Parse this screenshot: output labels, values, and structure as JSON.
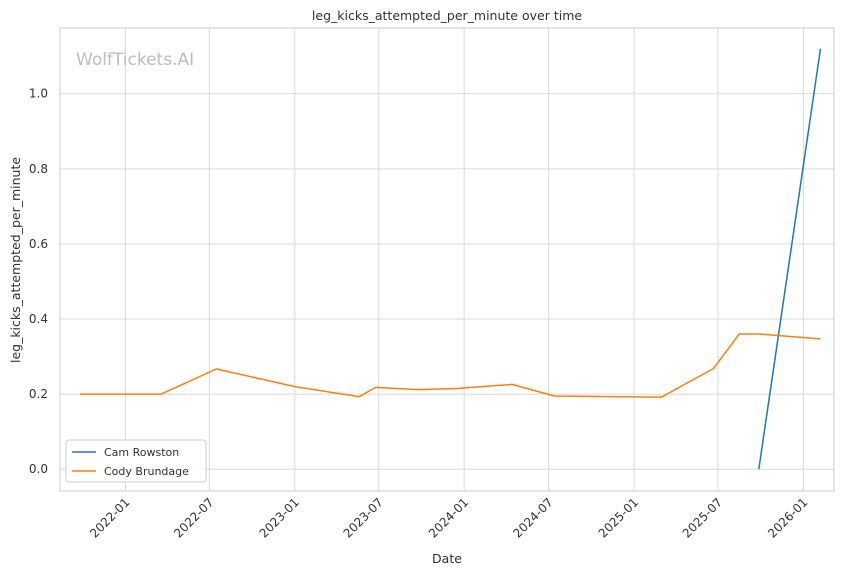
{
  "chart_data": {
    "type": "line",
    "title": "leg_kicks_attempted_per_minute over time",
    "xlabel": "Date",
    "ylabel": "leg_kicks_attempted_per_minute",
    "watermark": "WolfTickets.AI",
    "x_ticks": [
      "2022-01",
      "2022-07",
      "2023-01",
      "2023-07",
      "2024-01",
      "2024-07",
      "2025-01",
      "2025-07",
      "2026-01"
    ],
    "y_ticks": [
      "0.0",
      "0.2",
      "0.4",
      "0.6",
      "0.8",
      "1.0"
    ],
    "xlim": [
      "2021-08-13",
      "2026-03-08"
    ],
    "ylim": [
      -0.058,
      1.175
    ],
    "grid": true,
    "legend_position": "lower-left",
    "series": [
      {
        "name": "Cam Rowston",
        "color": "#1f77b4",
        "points": [
          {
            "x": "2025-09-27",
            "y": 0.0
          },
          {
            "x": "2026-02-07",
            "y": 1.12
          }
        ]
      },
      {
        "name": "Cody Brundage",
        "color": "#ff7f0e",
        "points": [
          {
            "x": "2021-09-25",
            "y": 0.2
          },
          {
            "x": "2022-03-19",
            "y": 0.2
          },
          {
            "x": "2022-07-16",
            "y": 0.267
          },
          {
            "x": "2023-01-01",
            "y": 0.22
          },
          {
            "x": "2023-05-20",
            "y": 0.193
          },
          {
            "x": "2023-06-24",
            "y": 0.218
          },
          {
            "x": "2023-09-23",
            "y": 0.212
          },
          {
            "x": "2023-12-16",
            "y": 0.215
          },
          {
            "x": "2024-04-13",
            "y": 0.226
          },
          {
            "x": "2024-07-13",
            "y": 0.195
          },
          {
            "x": "2025-03-01",
            "y": 0.192
          },
          {
            "x": "2025-06-21",
            "y": 0.268
          },
          {
            "x": "2025-08-16",
            "y": 0.36
          },
          {
            "x": "2025-09-27",
            "y": 0.36
          },
          {
            "x": "2026-02-07",
            "y": 0.347
          }
        ]
      }
    ]
  }
}
